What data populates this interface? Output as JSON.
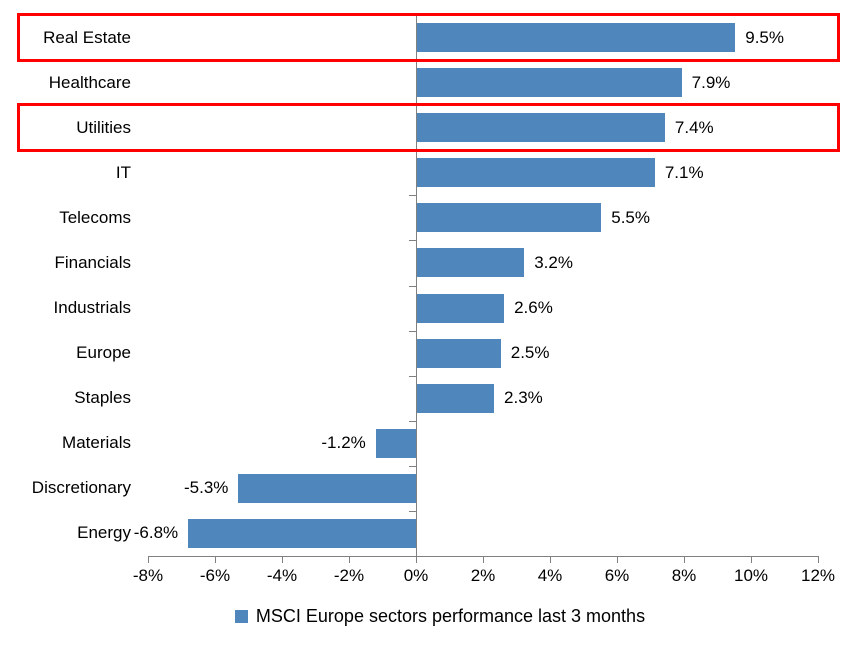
{
  "chart_data": {
    "type": "bar",
    "orientation": "horizontal",
    "title": "",
    "categories": [
      "Real Estate",
      "Healthcare",
      "Utilities",
      "IT",
      "Telecoms",
      "Financials",
      "Industrials",
      "Europe",
      "Staples",
      "Materials",
      "Discretionary",
      "Energy"
    ],
    "values": [
      9.5,
      7.9,
      7.4,
      7.1,
      5.5,
      3.2,
      2.6,
      2.5,
      2.3,
      -1.2,
      -5.3,
      -6.8
    ],
    "value_labels": [
      "9.5%",
      "7.9%",
      "7.4%",
      "7.1%",
      "5.5%",
      "3.2%",
      "2.6%",
      "2.5%",
      "2.3%",
      "-1.2%",
      "-5.3%",
      "-6.8%"
    ],
    "xlim": [
      -8,
      12
    ],
    "x_tick_step": 2,
    "x_tick_labels": [
      "-8%",
      "-6%",
      "-4%",
      "-2%",
      "0%",
      "2%",
      "4%",
      "6%",
      "8%",
      "10%",
      "12%"
    ],
    "grid": false,
    "legend_position": "bottom",
    "legend": "MSCI Europe sectors performance last 3 months",
    "bar_color": "#4f86bc",
    "axis_color": "#808080",
    "highlight_color": "#ff0000",
    "highlighted_categories": [
      "Real Estate",
      "Utilities"
    ]
  }
}
